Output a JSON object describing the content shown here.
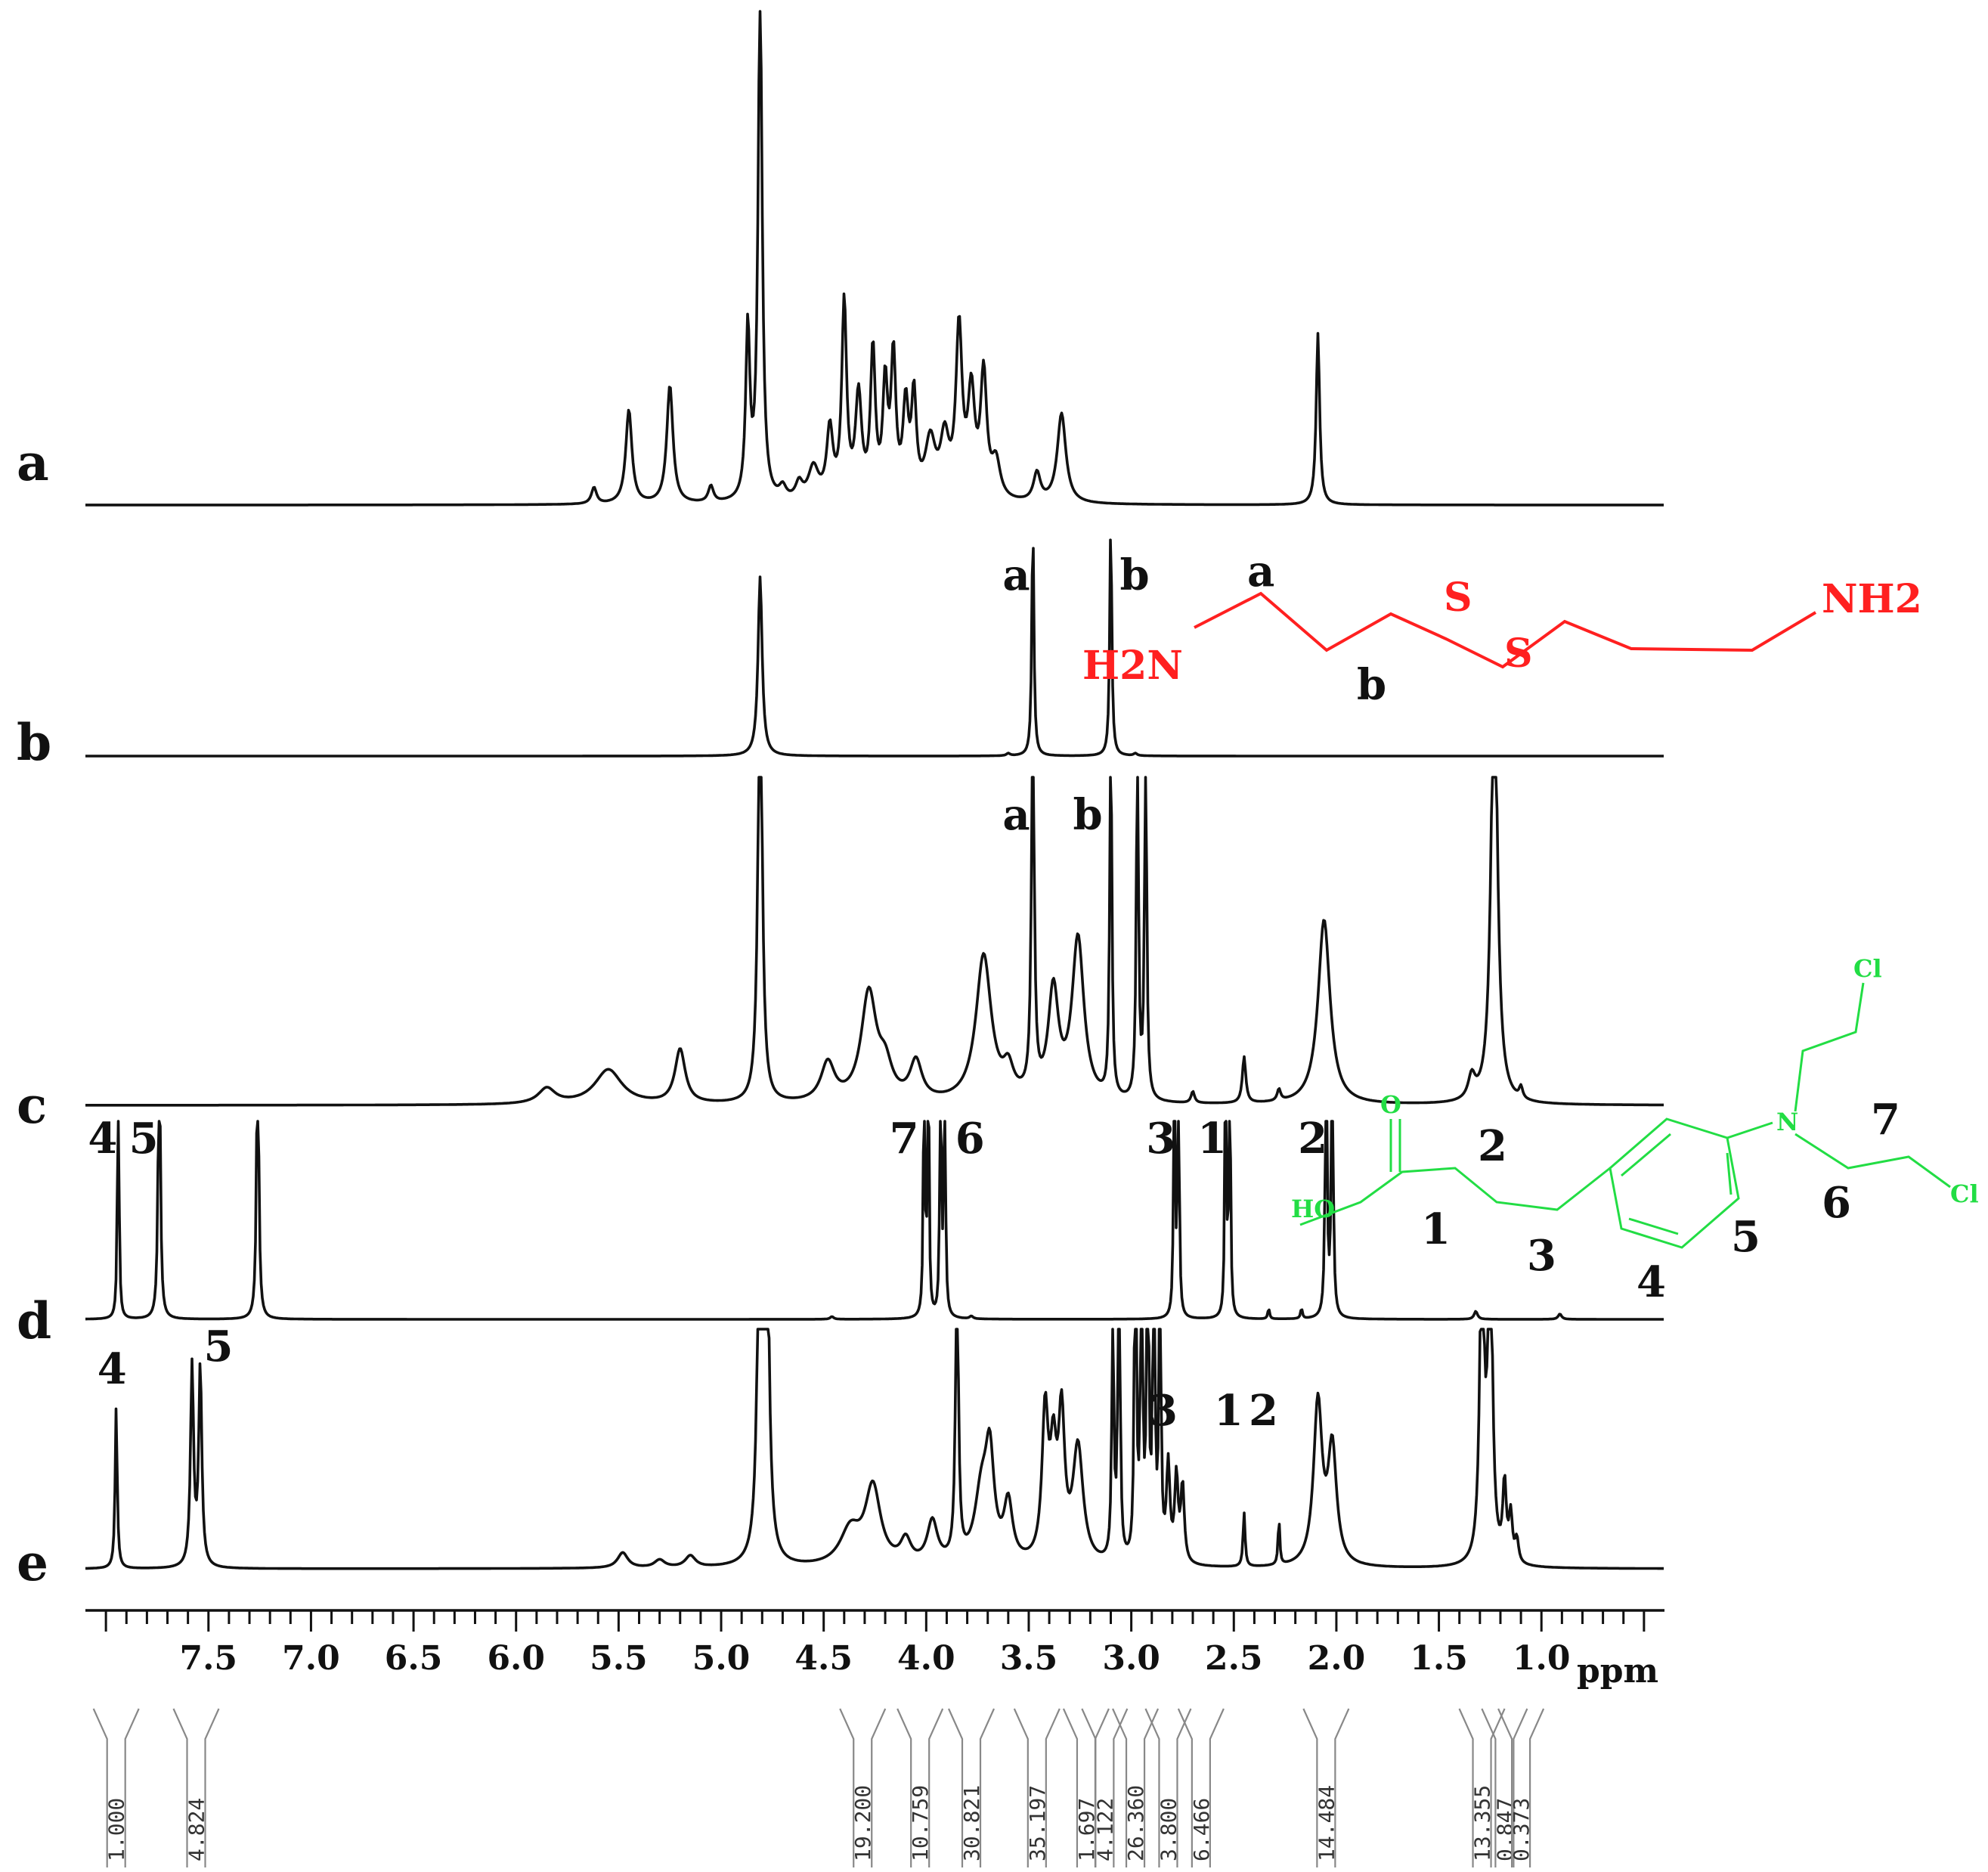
{
  "chart_data": {
    "type": "line",
    "title": "",
    "xlabel": "ppm",
    "ylabel": "",
    "x_reversed": true,
    "xlim": [
      8.1,
      0.4
    ],
    "ticks": [
      "7.5",
      "7.0",
      "6.5",
      "6.0",
      "5.5",
      "5.0",
      "4.5",
      "4.0",
      "3.5",
      "3.0",
      "2.5",
      "2.0",
      "1.5",
      "1.0"
    ],
    "tick_values": [
      7.5,
      7.0,
      6.5,
      6.0,
      5.5,
      5.0,
      4.5,
      4.0,
      3.5,
      3.0,
      2.5,
      2.0,
      1.5,
      1.0
    ],
    "series": [
      {
        "label": "a",
        "clip": false,
        "peaks": [
          [
            5.62,
            0.04,
            0.015
          ],
          [
            5.45,
            0.23,
            0.018
          ],
          [
            5.25,
            0.29,
            0.018
          ],
          [
            5.05,
            0.04,
            0.015
          ],
          [
            4.87,
            0.42,
            0.012
          ],
          [
            4.81,
            1.25,
            0.012
          ],
          [
            4.7,
            0.03,
            0.02
          ],
          [
            4.62,
            0.04,
            0.02
          ],
          [
            4.55,
            0.08,
            0.03
          ],
          [
            4.47,
            0.17,
            0.018
          ],
          [
            4.4,
            0.48,
            0.014
          ],
          [
            4.33,
            0.25,
            0.018
          ],
          [
            4.26,
            0.36,
            0.014
          ],
          [
            4.2,
            0.27,
            0.014
          ],
          [
            4.16,
            0.34,
            0.014
          ],
          [
            4.1,
            0.22,
            0.016
          ],
          [
            4.06,
            0.24,
            0.014
          ],
          [
            3.98,
            0.14,
            0.03
          ],
          [
            3.91,
            0.14,
            0.025
          ],
          [
            3.84,
            0.41,
            0.018
          ],
          [
            3.78,
            0.25,
            0.02
          ],
          [
            3.72,
            0.3,
            0.018
          ],
          [
            3.66,
            0.09,
            0.025
          ],
          [
            3.46,
            0.07,
            0.02
          ],
          [
            3.34,
            0.22,
            0.025
          ],
          [
            2.09,
            0.42,
            0.01
          ]
        ]
      },
      {
        "label": "b",
        "clip": false,
        "peaks": [
          [
            4.81,
            0.76,
            0.012
          ],
          [
            3.48,
            1.0,
            0.006
          ],
          [
            3.1,
            1.0,
            0.006
          ],
          [
            3.6,
            0.01,
            0.01
          ],
          [
            2.98,
            0.01,
            0.01
          ]
        ]
      },
      {
        "label": "c",
        "clip": true,
        "peaks": [
          [
            5.85,
            0.04,
            0.05
          ],
          [
            5.55,
            0.09,
            0.08
          ],
          [
            5.2,
            0.14,
            0.03
          ],
          [
            4.81,
            1.2,
            0.012
          ],
          [
            4.48,
            0.1,
            0.04
          ],
          [
            4.28,
            0.28,
            0.045
          ],
          [
            4.2,
            0.08,
            0.04
          ],
          [
            4.05,
            0.1,
            0.035
          ],
          [
            3.72,
            0.38,
            0.045
          ],
          [
            3.6,
            0.07,
            0.03
          ],
          [
            3.48,
            1.0,
            0.008
          ],
          [
            3.38,
            0.28,
            0.03
          ],
          [
            3.26,
            0.42,
            0.035
          ],
          [
            3.1,
            1.0,
            0.006
          ],
          [
            2.97,
            1.0,
            0.006
          ],
          [
            2.93,
            1.0,
            0.006
          ],
          [
            2.7,
            0.03,
            0.01
          ],
          [
            2.45,
            0.12,
            0.01
          ],
          [
            2.28,
            0.03,
            0.01
          ],
          [
            2.06,
            0.48,
            0.035
          ],
          [
            1.34,
            0.06,
            0.02
          ],
          [
            1.23,
            1.2,
            0.018
          ],
          [
            1.1,
            0.03,
            0.01
          ]
        ]
      },
      {
        "label": "d",
        "clip": true,
        "peaks": [
          [
            7.94,
            1.2,
            0.004
          ],
          [
            7.74,
            1.2,
            0.006
          ],
          [
            7.26,
            1.2,
            0.006
          ],
          [
            4.01,
            1.2,
            0.004
          ],
          [
            3.99,
            1.2,
            0.004
          ],
          [
            3.93,
            1.2,
            0.004
          ],
          [
            3.91,
            1.2,
            0.004
          ],
          [
            2.79,
            1.2,
            0.004
          ],
          [
            2.77,
            1.2,
            0.004
          ],
          [
            2.54,
            1.2,
            0.004
          ],
          [
            2.52,
            1.2,
            0.004
          ],
          [
            2.05,
            1.2,
            0.005
          ],
          [
            2.02,
            1.2,
            0.005
          ],
          [
            2.33,
            0.04,
            0.005
          ],
          [
            2.17,
            0.04,
            0.005
          ],
          [
            1.32,
            0.03,
            0.01
          ],
          [
            0.91,
            0.02,
            0.01
          ],
          [
            4.46,
            0.01,
            0.01
          ],
          [
            3.78,
            0.01,
            0.01
          ]
        ]
      },
      {
        "label": "e",
        "clip": true,
        "peaks": [
          [
            7.95,
            0.42,
            0.006
          ],
          [
            7.58,
            0.52,
            0.009
          ],
          [
            7.54,
            0.52,
            0.009
          ],
          [
            5.48,
            0.04,
            0.03
          ],
          [
            5.3,
            0.02,
            0.03
          ],
          [
            5.15,
            0.03,
            0.03
          ],
          [
            4.81,
            1.2,
            0.012
          ],
          [
            4.78,
            1.2,
            0.012
          ],
          [
            4.37,
            0.09,
            0.06
          ],
          [
            4.26,
            0.2,
            0.045
          ],
          [
            4.1,
            0.06,
            0.03
          ],
          [
            3.97,
            0.11,
            0.03
          ],
          [
            3.85,
            0.82,
            0.008
          ],
          [
            3.73,
            0.18,
            0.04
          ],
          [
            3.69,
            0.25,
            0.025
          ],
          [
            3.6,
            0.15,
            0.025
          ],
          [
            3.42,
            0.38,
            0.018
          ],
          [
            3.38,
            0.25,
            0.018
          ],
          [
            3.34,
            0.36,
            0.018
          ],
          [
            3.26,
            0.3,
            0.03
          ],
          [
            3.09,
            0.65,
            0.006
          ],
          [
            3.06,
            1.2,
            0.005
          ],
          [
            2.98,
            1.2,
            0.005
          ],
          [
            2.95,
            1.2,
            0.005
          ],
          [
            2.92,
            1.2,
            0.005
          ],
          [
            2.89,
            1.2,
            0.005
          ],
          [
            2.86,
            0.97,
            0.005
          ],
          [
            2.82,
            0.25,
            0.01
          ],
          [
            2.78,
            0.22,
            0.01
          ],
          [
            2.75,
            0.2,
            0.01
          ],
          [
            2.45,
            0.14,
            0.006
          ],
          [
            2.28,
            0.12,
            0.005
          ],
          [
            2.09,
            0.42,
            0.025
          ],
          [
            2.02,
            0.3,
            0.025
          ],
          [
            1.29,
            0.9,
            0.012
          ],
          [
            1.25,
            0.95,
            0.012
          ],
          [
            1.18,
            0.2,
            0.01
          ],
          [
            1.15,
            0.12,
            0.01
          ],
          [
            1.12,
            0.06,
            0.01
          ]
        ]
      }
    ],
    "peak_labels": [
      {
        "trace": "b",
        "text": "a",
        "ppm": 3.48
      },
      {
        "trace": "b",
        "text": "b",
        "ppm": 3.1
      },
      {
        "trace": "c",
        "text": "a",
        "ppm": 3.48
      },
      {
        "trace": "c",
        "text": "b",
        "ppm": 3.1
      },
      {
        "trace": "d",
        "text": "4",
        "ppm": 7.94
      },
      {
        "trace": "d",
        "text": "5",
        "ppm": 7.74
      },
      {
        "trace": "d",
        "text": "7",
        "ppm": 4.01
      },
      {
        "trace": "d",
        "text": "6",
        "ppm": 3.91
      },
      {
        "trace": "d",
        "text": "3",
        "ppm": 2.78
      },
      {
        "trace": "d",
        "text": "1",
        "ppm": 2.53
      },
      {
        "trace": "d",
        "text": "2",
        "ppm": 2.04
      },
      {
        "trace": "e",
        "text": "4",
        "ppm": 7.95
      },
      {
        "trace": "e",
        "text": "5",
        "ppm": 7.56
      },
      {
        "trace": "e",
        "text": "3",
        "ppm": 2.77
      },
      {
        "trace": "e",
        "text": "1",
        "ppm": 2.45
      },
      {
        "trace": "e",
        "text": "2",
        "ppm": 2.28
      }
    ],
    "integrals": [
      {
        "value": "1.000",
        "ppm": 7.95
      },
      {
        "value": "4.824",
        "ppm": 7.56
      },
      {
        "value": "19.200",
        "ppm": 4.31
      },
      {
        "value": "10.759",
        "ppm": 4.03
      },
      {
        "value": "30.821",
        "ppm": 3.78
      },
      {
        "value": "35.197",
        "ppm": 3.46
      },
      {
        "value": "1.697",
        "ppm": 3.22
      },
      {
        "value": "4.122",
        "ppm": 3.13
      },
      {
        "value": "26.360",
        "ppm": 2.98
      },
      {
        "value": "3.800",
        "ppm": 2.82
      },
      {
        "value": "6.466",
        "ppm": 2.66
      },
      {
        "value": "14.484",
        "ppm": 2.05
      },
      {
        "value": "13.355",
        "ppm": 1.29
      },
      {
        "value": "0.847",
        "ppm": 1.18
      },
      {
        "value": "0.373",
        "ppm": 1.1
      }
    ]
  },
  "structures": {
    "cystamine": {
      "left": "H2N",
      "right": "NH2",
      "s": "S",
      "label_a": "a",
      "label_b": "b"
    },
    "chlorambucil": {
      "cl": "Cl",
      "n": "N",
      "o": "O",
      "ho": "HO",
      "num1": "1",
      "num2": "2",
      "num3": "3",
      "num4": "4",
      "num5": "5",
      "num6": "6",
      "num7": "7"
    }
  },
  "colors": {
    "trace": "#111111",
    "cystamine": "#ff2020",
    "chlorambucil": "#22dd44"
  }
}
